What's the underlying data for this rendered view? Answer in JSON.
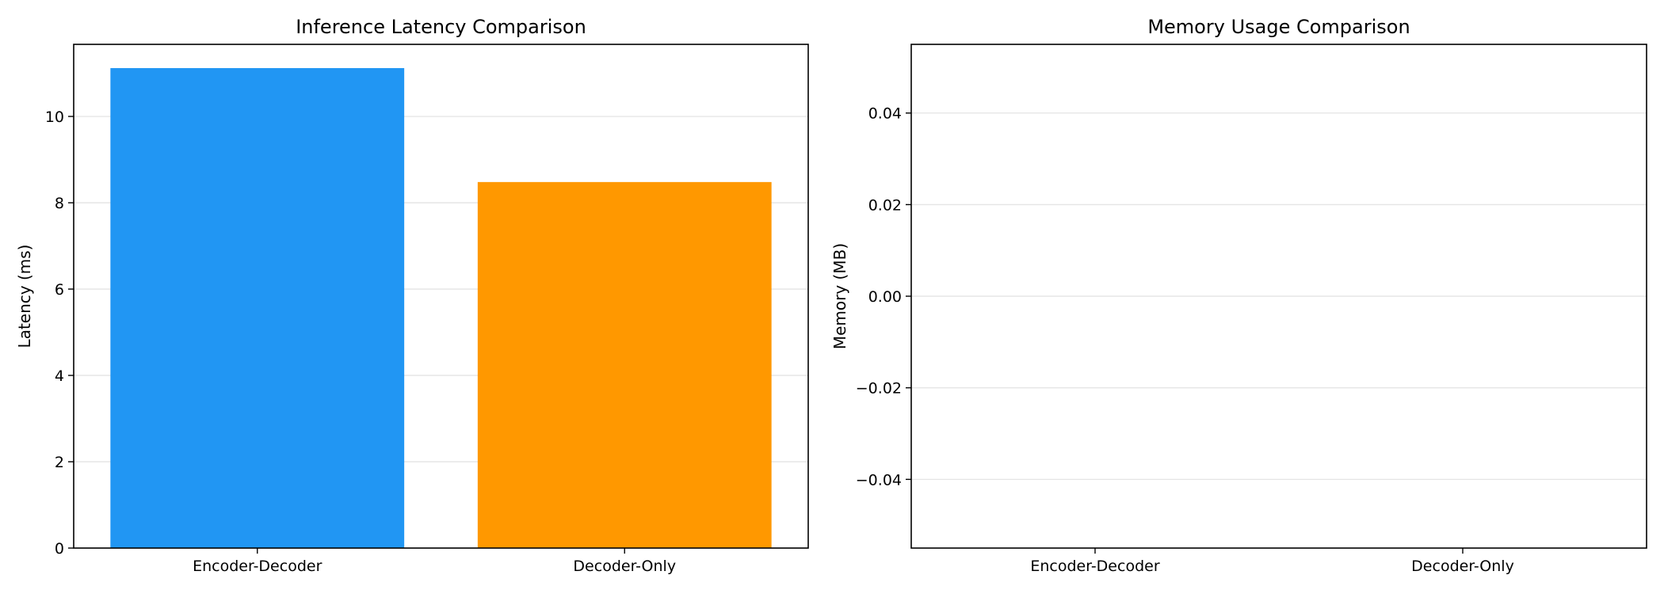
{
  "chart_data": [
    {
      "type": "bar",
      "title": "Inference Latency Comparison",
      "xlabel": "",
      "ylabel": "Latency (ms)",
      "categories": [
        "Encoder-Decoder",
        "Decoder-Only"
      ],
      "values": [
        11.12,
        8.48
      ],
      "colors": [
        "#2196f3",
        "#ff9800"
      ],
      "ylim": [
        0,
        11.67
      ],
      "yticks": [
        0,
        2,
        4,
        6,
        8,
        10
      ],
      "ytick_labels": [
        "0",
        "2",
        "4",
        "6",
        "8",
        "10"
      ],
      "grid": "y"
    },
    {
      "type": "bar",
      "title": "Memory Usage Comparison",
      "xlabel": "",
      "ylabel": "Memory (MB)",
      "categories": [
        "Encoder-Decoder",
        "Decoder-Only"
      ],
      "values": [
        0,
        0
      ],
      "colors": [
        "#2196f3",
        "#ff9800"
      ],
      "ylim": [
        -0.055,
        0.055
      ],
      "yticks": [
        -0.04,
        -0.02,
        0.0,
        0.02,
        0.04
      ],
      "ytick_labels": [
        "−0.04",
        "−0.02",
        "0.00",
        "0.02",
        "0.04"
      ],
      "grid": "y"
    }
  ]
}
